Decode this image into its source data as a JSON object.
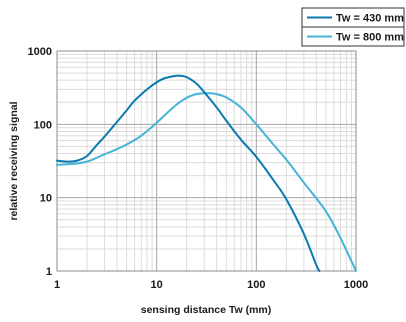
{
  "chart_data": {
    "type": "line",
    "xscale": "log",
    "yscale": "log",
    "xlim": [
      1,
      1000
    ],
    "ylim": [
      1,
      1000
    ],
    "grid": true,
    "legend_position": "top-right",
    "xlabel": "sensing distance Tw (mm)",
    "ylabel": "relative receiving signal",
    "x_ticks": [
      1,
      10,
      100,
      1000
    ],
    "x_tick_labels": [
      "1",
      "10",
      "100",
      "1000"
    ],
    "y_ticks": [
      1,
      10,
      100,
      1000
    ],
    "y_tick_labels": [
      "1",
      "10",
      "100",
      "1000"
    ],
    "series": [
      {
        "name": "Tw = 430 mm",
        "color": "#0a7ab0",
        "x": [
          1,
          1.3,
          1.6,
          2,
          2.5,
          3,
          4,
          5,
          6,
          8,
          10,
          12,
          15,
          17,
          20,
          25,
          30,
          40,
          50,
          70,
          100,
          150,
          200,
          300,
          400,
          430
        ],
        "y": [
          32,
          31,
          32,
          37,
          52,
          68,
          108,
          155,
          210,
          300,
          375,
          425,
          455,
          460,
          440,
          360,
          275,
          170,
          112,
          62,
          36,
          17,
          9.5,
          3.2,
          1.2,
          1
        ]
      },
      {
        "name": "Tw = 800 mm",
        "color": "#45b4d6",
        "x": [
          1,
          1.5,
          2,
          2.5,
          3,
          4,
          5,
          7,
          10,
          15,
          20,
          25,
          30,
          35,
          40,
          50,
          70,
          100,
          150,
          200,
          300,
          500,
          700,
          1000
        ],
        "y": [
          28,
          29,
          31,
          35,
          39,
          46,
          53,
          70,
          105,
          175,
          230,
          258,
          265,
          265,
          258,
          232,
          170,
          100,
          52,
          33,
          16,
          6.5,
          2.8,
          1
        ]
      }
    ]
  }
}
